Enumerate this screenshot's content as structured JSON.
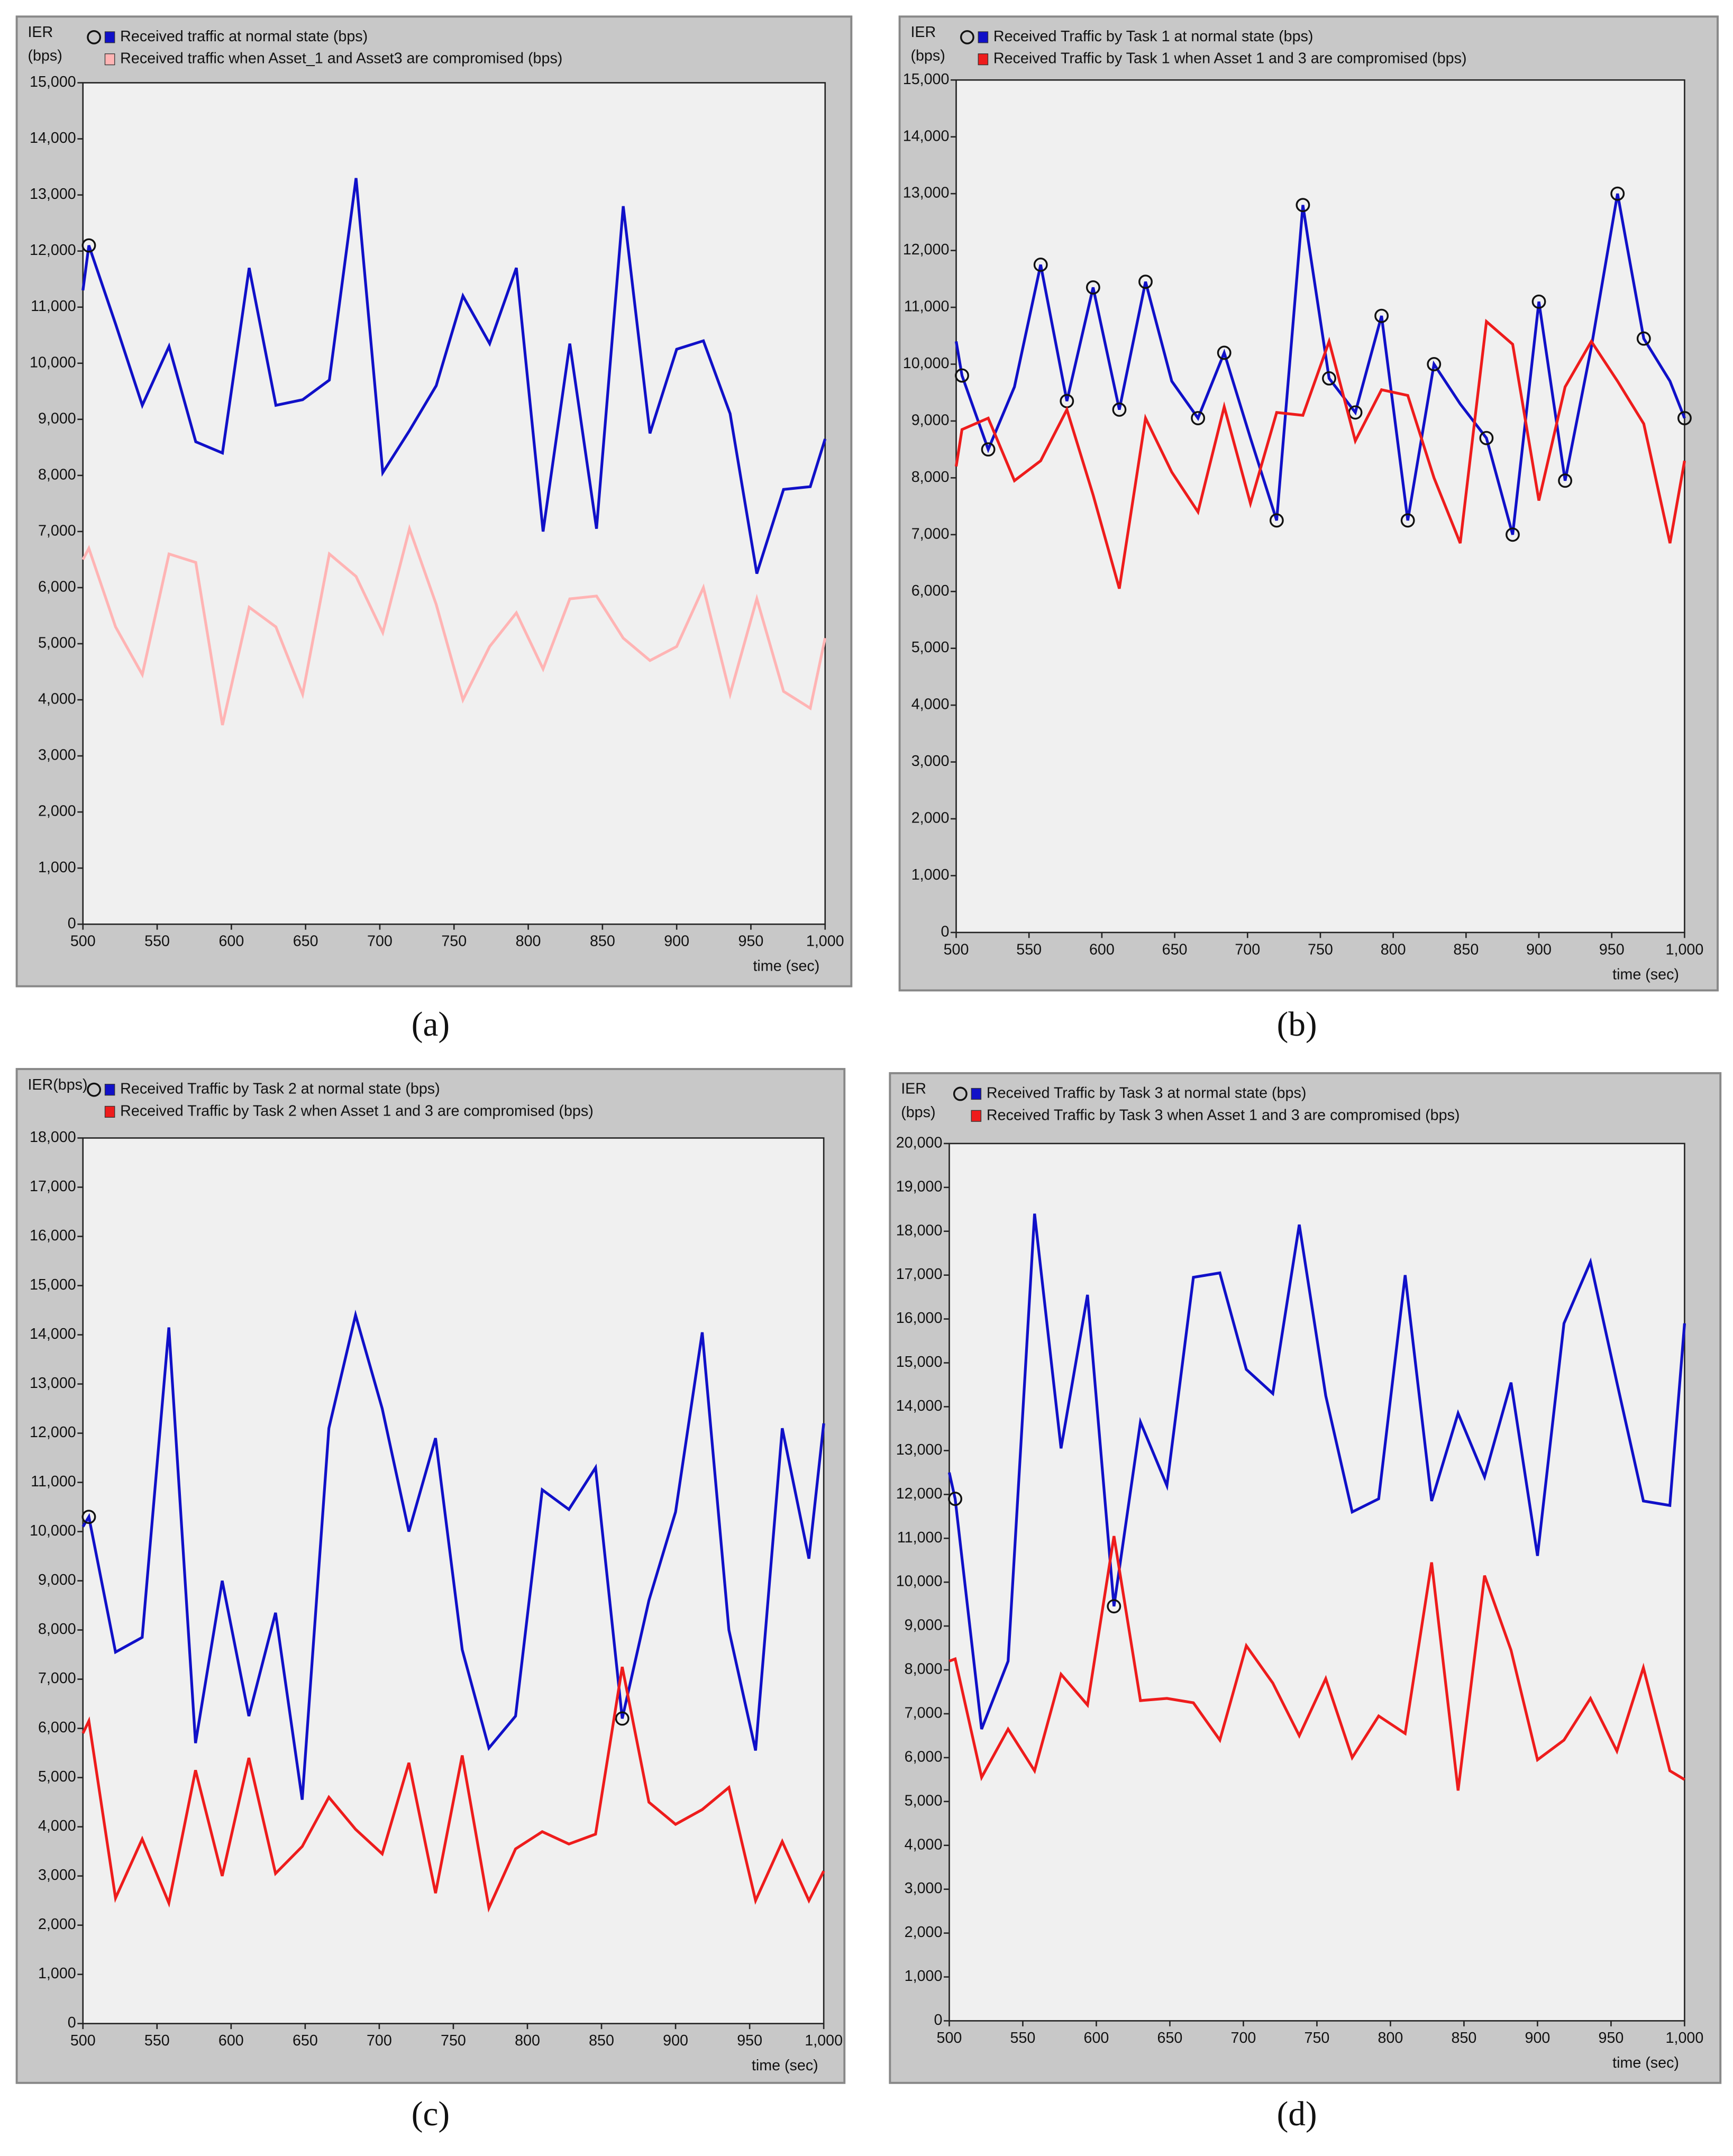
{
  "chart_data": [
    {
      "type": "line",
      "caption": "(a)",
      "ylabel": [
        "IER",
        "(bps)"
      ],
      "xlabel": "time (sec)",
      "x": [
        500,
        504,
        522,
        540,
        558,
        576,
        594,
        612,
        630,
        648,
        666,
        684,
        702,
        720,
        738,
        756,
        774,
        792,
        810,
        828,
        846,
        864,
        882,
        900,
        918,
        936,
        954,
        972,
        990,
        1000
      ],
      "xlim": [
        500,
        1000
      ],
      "xticks": [
        500,
        550,
        600,
        650,
        700,
        750,
        800,
        850,
        900,
        950,
        {
          "value": 1000,
          "label": "1,000"
        }
      ],
      "ylim": [
        0,
        15000
      ],
      "yticks": [
        0,
        {
          "value": 1000,
          "label": "1,000"
        },
        {
          "value": 2000,
          "label": "2,000"
        },
        {
          "value": 3000,
          "label": "3,000"
        },
        {
          "value": 4000,
          "label": "4,000"
        },
        {
          "value": 5000,
          "label": "5,000"
        },
        {
          "value": 6000,
          "label": "6,000"
        },
        {
          "value": 7000,
          "label": "7,000"
        },
        {
          "value": 8000,
          "label": "8,000"
        },
        {
          "value": 9000,
          "label": "9,000"
        },
        {
          "value": 10000,
          "label": "10,000"
        },
        {
          "value": 11000,
          "label": "11,000"
        },
        {
          "value": 12000,
          "label": "12,000"
        },
        {
          "value": 13000,
          "label": "13,000"
        },
        {
          "value": 14000,
          "label": "14,000"
        },
        {
          "value": 15000,
          "label": "15,000"
        }
      ],
      "series": [
        {
          "name": "Received traffic at normal state (bps)",
          "color": "#1010c8",
          "marker_indices": [
            1
          ],
          "values": [
            11300,
            12100,
            10700,
            9250,
            10300,
            8600,
            8400,
            11700,
            9250,
            9350,
            9700,
            13300,
            8050,
            8800,
            9600,
            11200,
            10350,
            11700,
            7000,
            10350,
            7050,
            12800,
            8750,
            10250,
            10400,
            9100,
            6250,
            7750,
            7800,
            8650
          ]
        },
        {
          "name": "Received traffic when Asset_1 and Asset3 are compromised (bps)",
          "color": "#ffb4b4",
          "marker_indices": [],
          "values": [
            6500,
            6700,
            5300,
            4450,
            6600,
            6450,
            3550,
            5650,
            5300,
            4100,
            6600,
            6200,
            5200,
            7050,
            5700,
            4000,
            4950,
            5550,
            4550,
            5800,
            5850,
            5100,
            4700,
            4950,
            6000,
            4100,
            5800,
            4150,
            3850,
            5100
          ]
        }
      ]
    },
    {
      "type": "line",
      "caption": "(b)",
      "ylabel": [
        "IER",
        "(bps)"
      ],
      "xlabel": "time (sec)",
      "x": [
        500,
        504,
        522,
        540,
        558,
        576,
        594,
        612,
        630,
        648,
        666,
        684,
        702,
        720,
        738,
        756,
        774,
        792,
        810,
        828,
        846,
        864,
        882,
        900,
        918,
        936,
        954,
        972,
        990,
        1000
      ],
      "xlim": [
        500,
        1000
      ],
      "xticks": [
        500,
        550,
        600,
        650,
        700,
        750,
        800,
        850,
        900,
        950,
        {
          "value": 1000,
          "label": "1,000"
        }
      ],
      "ylim": [
        0,
        15000
      ],
      "yticks": [
        0,
        {
          "value": 1000,
          "label": "1,000"
        },
        {
          "value": 2000,
          "label": "2,000"
        },
        {
          "value": 3000,
          "label": "3,000"
        },
        {
          "value": 4000,
          "label": "4,000"
        },
        {
          "value": 5000,
          "label": "5,000"
        },
        {
          "value": 6000,
          "label": "6,000"
        },
        {
          "value": 7000,
          "label": "7,000"
        },
        {
          "value": 8000,
          "label": "8,000"
        },
        {
          "value": 9000,
          "label": "9,000"
        },
        {
          "value": 10000,
          "label": "10,000"
        },
        {
          "value": 11000,
          "label": "11,000"
        },
        {
          "value": 12000,
          "label": "12,000"
        },
        {
          "value": 13000,
          "label": "13,000"
        },
        {
          "value": 14000,
          "label": "14,000"
        },
        {
          "value": 15000,
          "label": "15,000"
        }
      ],
      "series": [
        {
          "name": "Received Traffic by Task 1 at normal state (bps)",
          "color": "#1010c8",
          "marker_indices": [
            1,
            2,
            4,
            5,
            6,
            7,
            8,
            10,
            11,
            13,
            14,
            15,
            16,
            17,
            18,
            19,
            21,
            22,
            23,
            24,
            26,
            27,
            29
          ],
          "values": [
            10400,
            9800,
            8500,
            9600,
            11750,
            9350,
            11350,
            9200,
            11450,
            9700,
            9050,
            10200,
            8700,
            7250,
            12800,
            9750,
            9150,
            10850,
            7250,
            10000,
            9300,
            8700,
            7000,
            11100,
            7950,
            10300,
            13000,
            10450,
            9700,
            9050
          ]
        },
        {
          "name": "Received Traffic by Task 1 when Asset 1 and 3 are compromised (bps)",
          "color": "#ee1c1c",
          "marker_indices": [],
          "values": [
            8200,
            8850,
            9050,
            7950,
            8300,
            9200,
            7700,
            6050,
            9050,
            8100,
            7400,
            9250,
            7550,
            9150,
            9100,
            10400,
            8650,
            9550,
            9450,
            8000,
            6850,
            10750,
            10350,
            7600,
            9600,
            10400,
            9700,
            8950,
            6850,
            8300
          ]
        }
      ]
    },
    {
      "type": "line",
      "caption": "(c)",
      "ylabel": [
        "IER(bps)"
      ],
      "xlabel": "time (sec)",
      "x": [
        500,
        504,
        522,
        540,
        558,
        576,
        594,
        612,
        630,
        648,
        666,
        684,
        702,
        720,
        738,
        756,
        774,
        792,
        810,
        828,
        846,
        864,
        882,
        900,
        918,
        936,
        954,
        972,
        990,
        1000
      ],
      "xlim": [
        500,
        1000
      ],
      "xticks": [
        500,
        550,
        600,
        650,
        700,
        750,
        800,
        850,
        900,
        950,
        {
          "value": 1000,
          "label": "1,000"
        }
      ],
      "ylim": [
        0,
        18000
      ],
      "yticks": [
        0,
        {
          "value": 1000,
          "label": "1,000"
        },
        {
          "value": 2000,
          "label": "2,000"
        },
        {
          "value": 3000,
          "label": "3,000"
        },
        {
          "value": 4000,
          "label": "4,000"
        },
        {
          "value": 5000,
          "label": "5,000"
        },
        {
          "value": 6000,
          "label": "6,000"
        },
        {
          "value": 7000,
          "label": "7,000"
        },
        {
          "value": 8000,
          "label": "8,000"
        },
        {
          "value": 9000,
          "label": "9,000"
        },
        {
          "value": 10000,
          "label": "10,000"
        },
        {
          "value": 11000,
          "label": "11,000"
        },
        {
          "value": 12000,
          "label": "12,000"
        },
        {
          "value": 13000,
          "label": "13,000"
        },
        {
          "value": 14000,
          "label": "14,000"
        },
        {
          "value": 15000,
          "label": "15,000"
        },
        {
          "value": 16000,
          "label": "16,000"
        },
        {
          "value": 17000,
          "label": "17,000"
        },
        {
          "value": 18000,
          "label": "18,000"
        }
      ],
      "series": [
        {
          "name": "Received Traffic by Task 2 at normal state (bps)",
          "color": "#1010c8",
          "marker_indices": [
            1,
            21
          ],
          "values": [
            10100,
            10300,
            7550,
            7850,
            14150,
            5700,
            9000,
            6250,
            8350,
            4550,
            12100,
            14400,
            12500,
            10000,
            11900,
            7600,
            5600,
            6250,
            10850,
            10450,
            11300,
            6200,
            8600,
            10400,
            14050,
            8000,
            5550,
            12100,
            9450,
            12200
          ]
        },
        {
          "name": "Received Traffic by Task 2 when Asset 1 and 3 are compromised (bps)",
          "color": "#ee1c1c",
          "marker_indices": [],
          "values": [
            5900,
            6150,
            2550,
            3750,
            2450,
            5150,
            3000,
            5400,
            3050,
            3600,
            4600,
            3950,
            3450,
            5300,
            2650,
            5450,
            2350,
            3550,
            3900,
            3650,
            3850,
            7250,
            4500,
            4050,
            4350,
            4800,
            2500,
            3700,
            2500,
            3100
          ]
        }
      ]
    },
    {
      "type": "line",
      "caption": "(d)",
      "ylabel": [
        "IER",
        "(bps)"
      ],
      "xlabel": "time (sec)",
      "x": [
        500,
        504,
        522,
        540,
        558,
        576,
        594,
        612,
        630,
        648,
        666,
        684,
        702,
        720,
        738,
        756,
        774,
        792,
        810,
        828,
        846,
        864,
        882,
        900,
        918,
        936,
        954,
        972,
        990,
        1000
      ],
      "xlim": [
        500,
        1000
      ],
      "xticks": [
        500,
        550,
        600,
        650,
        700,
        750,
        800,
        850,
        900,
        950,
        {
          "value": 1000,
          "label": "1,000"
        }
      ],
      "ylim": [
        0,
        20000
      ],
      "yticks": [
        0,
        {
          "value": 1000,
          "label": "1,000"
        },
        {
          "value": 2000,
          "label": "2,000"
        },
        {
          "value": 3000,
          "label": "3,000"
        },
        {
          "value": 4000,
          "label": "4,000"
        },
        {
          "value": 5000,
          "label": "5,000"
        },
        {
          "value": 6000,
          "label": "6,000"
        },
        {
          "value": 7000,
          "label": "7,000"
        },
        {
          "value": 8000,
          "label": "8,000"
        },
        {
          "value": 9000,
          "label": "9,000"
        },
        {
          "value": 10000,
          "label": "10,000"
        },
        {
          "value": 11000,
          "label": "11,000"
        },
        {
          "value": 12000,
          "label": "12,000"
        },
        {
          "value": 13000,
          "label": "13,000"
        },
        {
          "value": 14000,
          "label": "14,000"
        },
        {
          "value": 15000,
          "label": "15,000"
        },
        {
          "value": 16000,
          "label": "16,000"
        },
        {
          "value": 17000,
          "label": "17,000"
        },
        {
          "value": 18000,
          "label": "18,000"
        },
        {
          "value": 19000,
          "label": "19,000"
        },
        {
          "value": 20000,
          "label": "20,000"
        }
      ],
      "series": [
        {
          "name": "Received Traffic by Task 3 at normal state (bps)",
          "color": "#1010c8",
          "marker_indices": [
            1,
            7
          ],
          "values": [
            12500,
            11900,
            6650,
            8200,
            18400,
            13050,
            16550,
            9450,
            13650,
            12200,
            16950,
            17050,
            14850,
            14300,
            18150,
            14250,
            11600,
            11900,
            17000,
            11850,
            13850,
            12400,
            14550,
            10600,
            15900,
            17300,
            14550,
            11850,
            11750,
            15900
          ]
        },
        {
          "name": "Received Traffic by Task 3 when Asset 1 and 3 are compromised (bps)",
          "color": "#ee1c1c",
          "marker_indices": [],
          "values": [
            8200,
            8250,
            5550,
            6650,
            5700,
            7900,
            7200,
            11050,
            7300,
            7350,
            7250,
            6400,
            8550,
            7700,
            6500,
            7800,
            6000,
            6950,
            6550,
            10450,
            5250,
            10150,
            8450,
            5950,
            6400,
            7350,
            6150,
            8050,
            5700,
            5500
          ]
        }
      ]
    }
  ]
}
